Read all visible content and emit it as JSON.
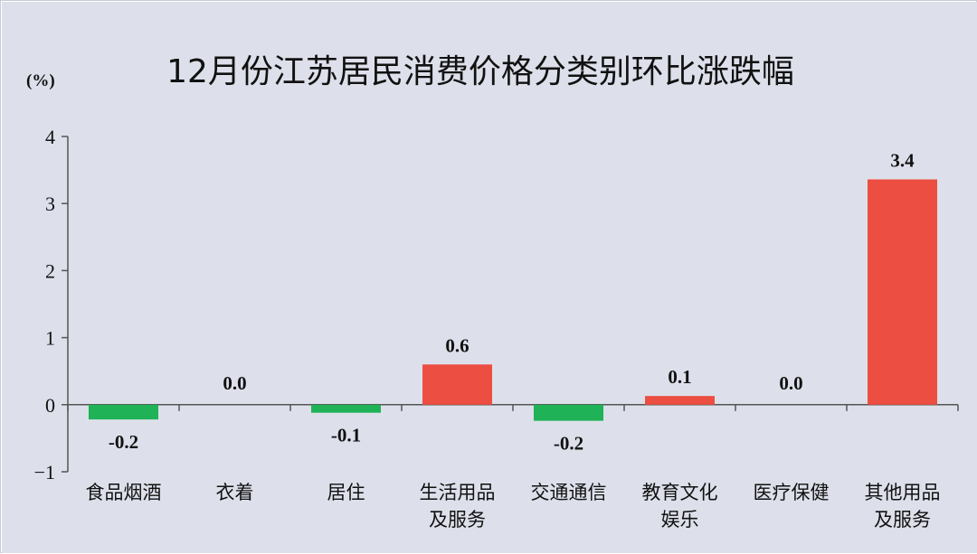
{
  "chart_data": {
    "type": "bar",
    "title": "12月份江苏居民消费价格分类别环比涨跌幅",
    "unit_label": "(%)",
    "xlabel": "",
    "ylabel": "",
    "ylim": [
      -1,
      4
    ],
    "yticks": [
      4,
      3,
      2,
      1,
      0,
      -1
    ],
    "ytick_labels": [
      "4",
      "3",
      "2",
      "1",
      "0",
      "−1"
    ],
    "categories": [
      [
        "食品烟酒"
      ],
      [
        "衣着"
      ],
      [
        "居住"
      ],
      [
        "生活用品",
        "及服务"
      ],
      [
        "交通通信"
      ],
      [
        "教育文化",
        "娱乐"
      ],
      [
        "医疗保健"
      ],
      [
        "其他用品",
        "及服务"
      ]
    ],
    "values": [
      -0.2,
      0.0,
      -0.1,
      0.6,
      -0.2,
      0.1,
      0.0,
      3.4
    ],
    "value_labels": [
      "-0.2",
      "0.0",
      "-0.1",
      "0.6",
      "-0.2",
      "0.1",
      "0.0",
      "3.4"
    ],
    "bar_values": [
      -0.22,
      0.0,
      -0.12,
      0.6,
      -0.24,
      0.13,
      0.0,
      3.36
    ],
    "colors": {
      "positive": "#ed4e42",
      "negative": "#1fb257",
      "background": "#dde0ea",
      "axis": "#555555"
    },
    "grid": false,
    "legend": "none"
  }
}
